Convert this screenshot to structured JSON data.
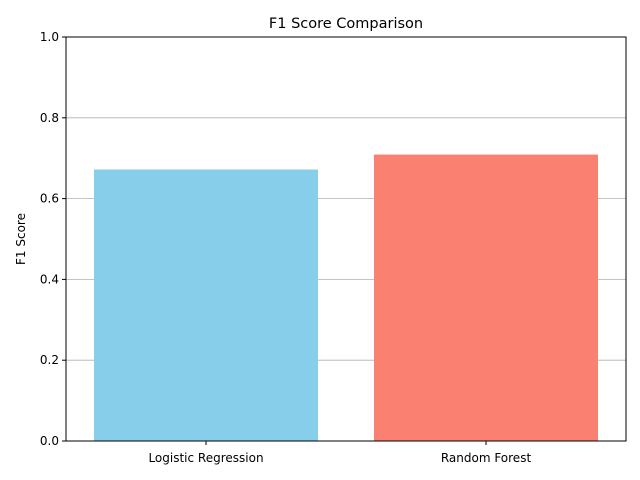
{
  "chart_data": {
    "type": "bar",
    "title": "F1 Score Comparison",
    "xlabel": "",
    "ylabel": "F1 Score",
    "categories": [
      "Logistic Regression",
      "Random Forest"
    ],
    "values": [
      0.672,
      0.709
    ],
    "colors": [
      "#87ceeb",
      "#fa8072"
    ],
    "ylim": [
      0,
      1.0
    ],
    "yticks": [
      "0.0",
      "0.2",
      "0.4",
      "0.6",
      "0.8",
      "1.0"
    ],
    "grid": "y",
    "legend": "none"
  }
}
